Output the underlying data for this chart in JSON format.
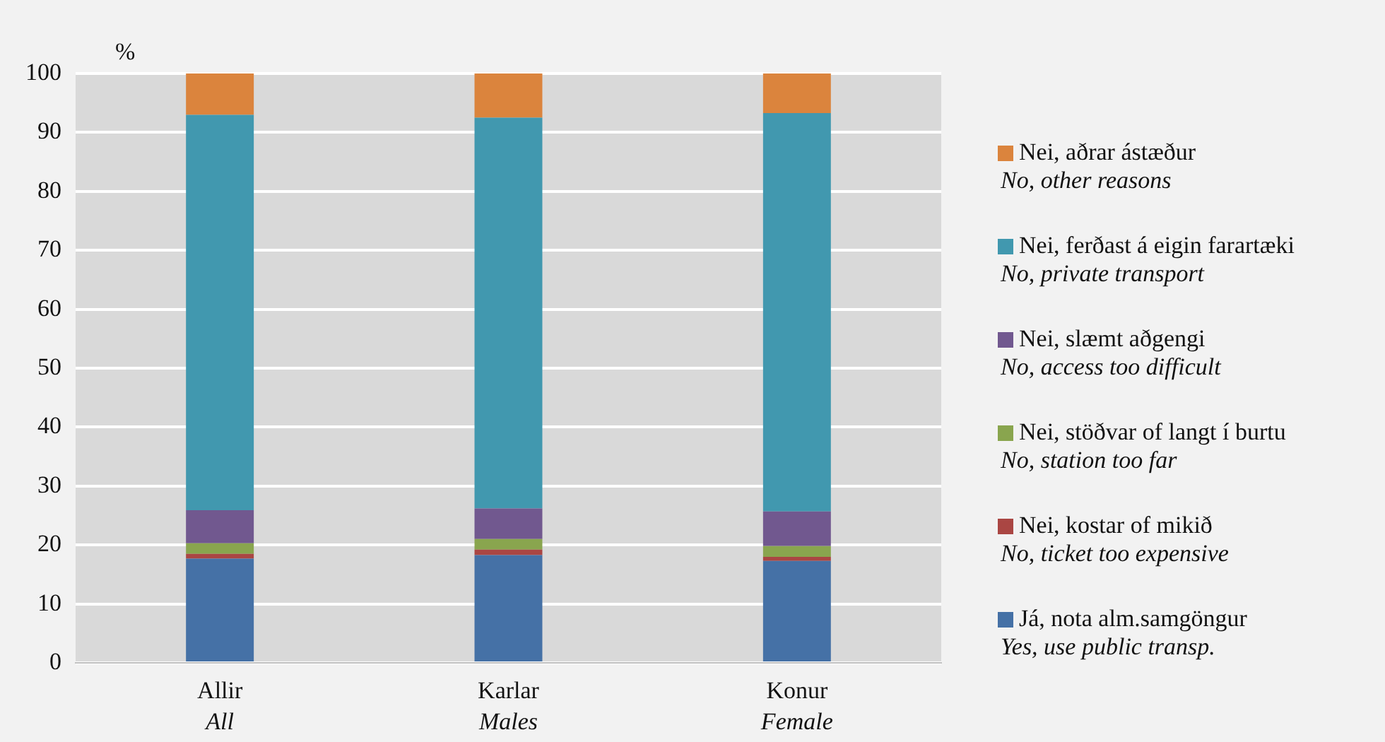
{
  "chart_data": {
    "type": "bar",
    "stacked": true,
    "ylabel": "%",
    "categories": [
      "Allir\nAll",
      "Karlar\nMales",
      "Konur\nFemale"
    ],
    "series": [
      {
        "name": "Já, nota alm.samgöngur\nYes, use public transp.",
        "color": "#4571a6",
        "values": [
          17.7,
          18.3,
          17.3
        ]
      },
      {
        "name": "Nei, kostar of mikið\nNo, ticket too expensive",
        "color": "#aa4643",
        "values": [
          0.8,
          0.9,
          0.7
        ]
      },
      {
        "name": "Nei, stöðvar of langt í burtu\nNo, station too far",
        "color": "#89a54e",
        "values": [
          1.8,
          1.8,
          1.8
        ]
      },
      {
        "name": "Nei, slæmt aðgengi\nNo, access too difficult",
        "color": "#71588f",
        "values": [
          5.6,
          5.2,
          5.9
        ]
      },
      {
        "name": "Nei, ferðast á eigin farartæki\nNo, private transport",
        "color": "#4198af",
        "values": [
          67.1,
          66.3,
          67.6
        ]
      },
      {
        "name": "Nei, aðrar ástæður\nNo, other reasons",
        "color": "#db843d",
        "values": [
          7.0,
          7.5,
          6.7
        ]
      }
    ],
    "ylim": [
      0,
      100
    ],
    "yticks": [
      0,
      10,
      20,
      30,
      40,
      50,
      60,
      70,
      80,
      90,
      100
    ],
    "grid": "y",
    "legend": "right"
  }
}
